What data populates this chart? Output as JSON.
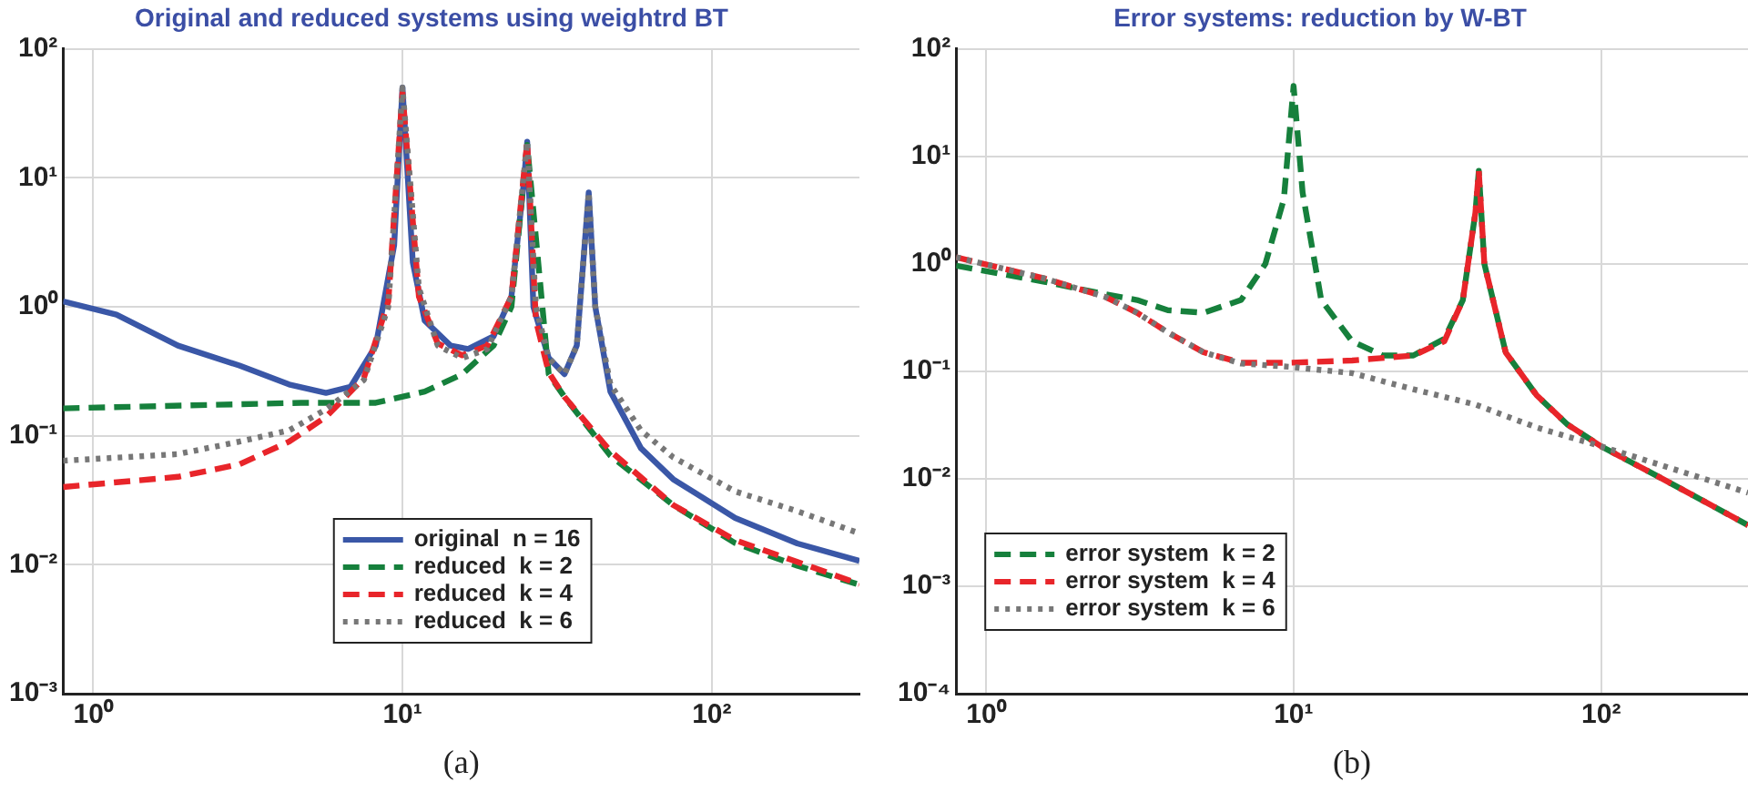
{
  "chart_data": [
    {
      "type": "line",
      "title": "Original and reduced systems using weightrd BT",
      "log": "xy",
      "grid": true,
      "legend": "bottom",
      "marker": "none",
      "xlim": [
        0.8,
        300
      ],
      "ylim": [
        0.001,
        100
      ],
      "xticks": [
        {
          "value": 1,
          "label": "10⁰"
        },
        {
          "value": 10,
          "label": "10¹"
        },
        {
          "value": 100,
          "label": "10²"
        }
      ],
      "yticks": [
        {
          "value": 0.001,
          "label": "10⁻³"
        },
        {
          "value": 0.01,
          "label": "10⁻²"
        },
        {
          "value": 0.1,
          "label": "10⁻¹"
        },
        {
          "value": 1,
          "label": "10⁰"
        },
        {
          "value": 10,
          "label": "10¹"
        },
        {
          "value": 100,
          "label": "10²"
        }
      ],
      "annotations": [
        "(a)"
      ],
      "series": [
        {
          "name": "original  n = 16",
          "color": "#3a57a7",
          "line_style": "solid",
          "x": [
            0.8,
            1.19,
            1.88,
            2.97,
            4.3,
            5.66,
            6.8,
            8.2,
            9.4,
            10,
            10.8,
            11.8,
            14.3,
            16.3,
            19.7,
            22.5,
            24.7,
            25.3,
            26.5,
            29.7,
            33.4,
            36.6,
            40,
            42,
            47,
            59,
            75,
            119,
            189,
            300
          ],
          "values": [
            1.1,
            0.87,
            0.5,
            0.35,
            0.25,
            0.215,
            0.24,
            0.5,
            3,
            50,
            2.2,
            0.78,
            0.5,
            0.47,
            0.59,
            1.2,
            9.4,
            19,
            1,
            0.4,
            0.3,
            0.5,
            7.7,
            1,
            0.22,
            0.08,
            0.046,
            0.023,
            0.0146,
            0.0107
          ]
        },
        {
          "name": "reduced  k = 2",
          "color": "#16803c",
          "line_style": "dashed",
          "x": [
            0.8,
            4.7,
            8.2,
            11.8,
            15.6,
            19.7,
            22.5,
            25.3,
            29.7,
            33.4,
            47,
            75,
            119,
            189,
            300
          ],
          "values": [
            0.163,
            0.18,
            0.18,
            0.22,
            0.3,
            0.5,
            1,
            18,
            0.3,
            0.2,
            0.07,
            0.029,
            0.0147,
            0.0098,
            0.007
          ]
        },
        {
          "name": "reduced  k = 4",
          "color": "#e8252a",
          "line_style": "dashed",
          "x": [
            0.8,
            1.88,
            2.97,
            4.3,
            5.66,
            7.5,
            9,
            10,
            11.3,
            13,
            15.6,
            18.8,
            22.5,
            25.3,
            27,
            29.7,
            33.4,
            47,
            75,
            119,
            189,
            300
          ],
          "values": [
            0.04,
            0.048,
            0.06,
            0.09,
            0.14,
            0.28,
            1.1,
            46,
            1.2,
            0.52,
            0.42,
            0.5,
            1.2,
            19,
            0.78,
            0.31,
            0.2,
            0.076,
            0.029,
            0.0155,
            0.0105,
            0.0071
          ]
        },
        {
          "name": "reduced  k = 6",
          "color": "#777777",
          "line_style": "dotted",
          "x": [
            0.8,
            1.88,
            2.97,
            4.3,
            5.66,
            7.5,
            9,
            10,
            11.3,
            13,
            15.6,
            18.8,
            22.5,
            25.3,
            27,
            29.7,
            33.4,
            36.6,
            40,
            42,
            47,
            59,
            75,
            119,
            189,
            300
          ],
          "values": [
            0.064,
            0.072,
            0.09,
            0.11,
            0.16,
            0.27,
            1,
            50,
            1.4,
            0.5,
            0.4,
            0.47,
            1.2,
            19,
            1,
            0.4,
            0.3,
            0.5,
            7.7,
            1,
            0.25,
            0.11,
            0.068,
            0.037,
            0.026,
            0.0175
          ]
        }
      ]
    },
    {
      "type": "line",
      "title": "Error systems: reduction by W-BT",
      "log": "xy",
      "grid": true,
      "legend": "bottom left",
      "marker": "none",
      "xlim": [
        0.8,
        300
      ],
      "ylim": [
        0.0001,
        100
      ],
      "xticks": [
        {
          "value": 1,
          "label": "10⁰"
        },
        {
          "value": 10,
          "label": "10¹"
        },
        {
          "value": 100,
          "label": "10²"
        }
      ],
      "yticks": [
        {
          "value": 0.0001,
          "label": "10⁻⁴"
        },
        {
          "value": 0.001,
          "label": "10⁻³"
        },
        {
          "value": 0.01,
          "label": "10⁻²"
        },
        {
          "value": 0.1,
          "label": "10⁻¹"
        },
        {
          "value": 1,
          "label": "10⁰"
        },
        {
          "value": 10,
          "label": "10¹"
        },
        {
          "value": 100,
          "label": "10²"
        }
      ],
      "annotations": [
        "(b)"
      ],
      "series": [
        {
          "name": "error system  k = 2",
          "color": "#16803c",
          "line_style": "dashed",
          "x": [
            0.8,
            1.55,
            2.45,
            3.1,
            3.9,
            5.1,
            6.75,
            8.1,
            9.3,
            10,
            10.7,
            12.3,
            15.5,
            19.5,
            24.5,
            30.9,
            35.5,
            39,
            40,
            41.7,
            48.9,
            61.6,
            77.6,
            100,
            155,
            300
          ],
          "values": [
            0.96,
            0.68,
            0.52,
            0.46,
            0.37,
            0.35,
            0.46,
            1,
            4,
            45,
            4.6,
            0.46,
            0.19,
            0.14,
            0.14,
            0.2,
            0.46,
            3,
            7.3,
            1,
            0.15,
            0.06,
            0.032,
            0.02,
            0.0103,
            0.0037
          ]
        },
        {
          "name": "error system  k = 4",
          "color": "#e8252a",
          "line_style": "dashed",
          "x": [
            0.8,
            1.55,
            2.45,
            3.1,
            3.9,
            5.1,
            6.75,
            9.7,
            15.5,
            24.5,
            30.9,
            35.5,
            39,
            40,
            41.7,
            48.9,
            61.6,
            77.6,
            100,
            155,
            300
          ],
          "values": [
            1.15,
            0.73,
            0.49,
            0.35,
            0.23,
            0.15,
            0.12,
            0.12,
            0.126,
            0.14,
            0.19,
            0.46,
            3,
            7.3,
            1,
            0.15,
            0.06,
            0.032,
            0.02,
            0.0103,
            0.0037
          ]
        },
        {
          "name": "error system  k = 6",
          "color": "#777777",
          "line_style": "dotted",
          "x": [
            0.8,
            1.55,
            2.45,
            3.1,
            3.9,
            5.1,
            6.75,
            9.7,
            15.5,
            24.5,
            39,
            61.6,
            100,
            155,
            300
          ],
          "values": [
            1.15,
            0.73,
            0.49,
            0.35,
            0.23,
            0.15,
            0.118,
            0.11,
            0.096,
            0.068,
            0.049,
            0.03,
            0.02,
            0.0135,
            0.0074
          ]
        }
      ]
    }
  ]
}
